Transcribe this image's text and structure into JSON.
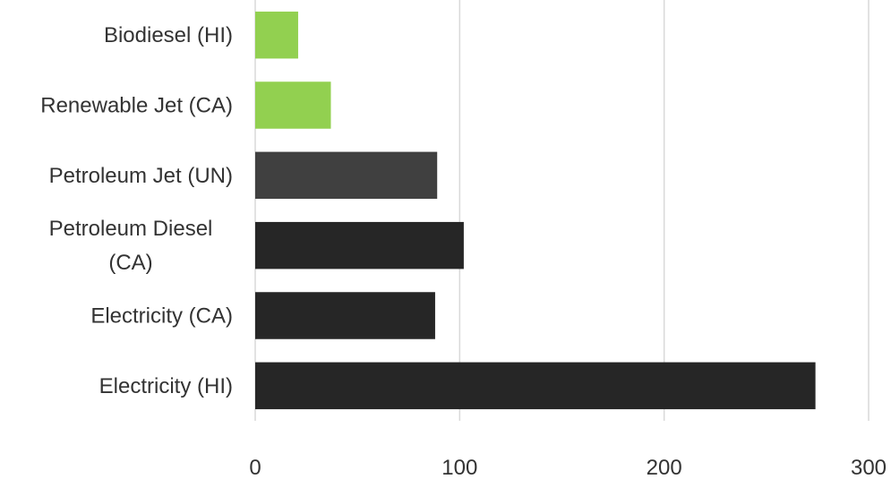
{
  "chart_data": {
    "type": "bar",
    "orientation": "horizontal",
    "title": "",
    "xlabel": "",
    "ylabel": "",
    "categories": [
      [
        "Electricity (HI)"
      ],
      [
        "Electricity (CA)"
      ],
      [
        "Petroleum Diesel",
        "(CA)"
      ],
      [
        "Petroleum Jet (UN)"
      ],
      [
        "Renewable Jet (CA)"
      ],
      [
        "Biodiesel (HI)"
      ]
    ],
    "values": [
      274,
      88,
      102,
      89,
      37,
      21
    ],
    "bar_colors": [
      "#262626",
      "#262626",
      "#262626",
      "#404040",
      "#92d050",
      "#92d050"
    ],
    "xlim": [
      0,
      300
    ],
    "xticks": [
      "0",
      "100",
      "200",
      "300"
    ],
    "grid": true,
    "legend": "none"
  }
}
